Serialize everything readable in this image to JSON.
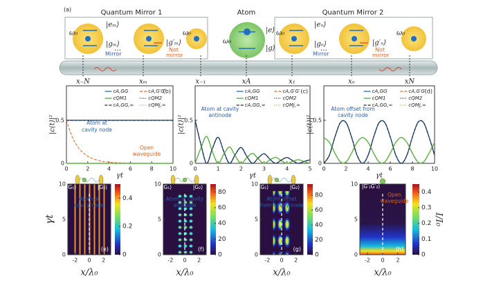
{
  "panel_a": {
    "label": "(a)",
    "mirror1_title": "Quantum Mirror 1",
    "mirror2_title": "Quantum Mirror 2",
    "atom_title": "Atom",
    "omega": "ω₀",
    "e_m": "|eₘ⟩",
    "g_m": "|gₘ⟩",
    "gp_m": "|g′ₘ⟩",
    "e_n": "|eₙ⟩",
    "g_n": "|gₙ⟩",
    "gp_n": "|g′ₙ⟩",
    "e": "|e⟩",
    "g": "|g⟩",
    "mirror": "Mirror",
    "not": "Not",
    "not_mirror": "mirror",
    "dots": "…",
    "positions": [
      "x₋N",
      "xₘ",
      "x₋₁",
      "xA",
      "x₁",
      "xₙ",
      "xN"
    ]
  },
  "chart_data": [
    {
      "type": "line",
      "panel_label": "(b)",
      "xlabel": "γt",
      "ylabel": "|c(t)|²",
      "xlim": [
        0,
        10
      ],
      "ylim": [
        0,
        0.9
      ],
      "xticks": [
        0,
        2,
        4,
        6,
        8,
        10
      ],
      "yticks": [
        0,
        0.5
      ],
      "annotations": [
        "Atom at",
        "cavity node",
        "Open",
        "waveguide"
      ],
      "x": [
        0,
        0.5,
        1,
        1.5,
        2,
        2.5,
        3,
        3.5,
        4,
        4.5,
        5,
        5.5,
        6,
        6.5,
        7,
        7.5,
        8,
        8.5,
        9,
        9.5,
        10
      ],
      "series": [
        {
          "name": "cA,GG",
          "color": "#1f6fc5",
          "dash": "solid",
          "values": [
            0.5,
            0.5,
            0.5,
            0.5,
            0.5,
            0.5,
            0.5,
            0.5,
            0.5,
            0.5,
            0.5,
            0.5,
            0.5,
            0.5,
            0.5,
            0.5,
            0.5,
            0.5,
            0.5,
            0.5,
            0.5
          ]
        },
        {
          "name": "cA,G′G′",
          "color": "#d9641e",
          "dash": "dashed",
          "values": [
            0.5,
            0.319,
            0.203,
            0.13,
            0.083,
            0.053,
            0.034,
            0.021,
            0.014,
            0.009,
            0.006,
            0.004,
            0.002,
            0.001,
            0,
            0,
            0,
            0,
            0,
            0,
            0
          ]
        },
        {
          "name": "cQM1",
          "color": "#4aa84a",
          "dash": "solid",
          "values": [
            0,
            0,
            0,
            0,
            0,
            0,
            0,
            0,
            0,
            0,
            0,
            0,
            0,
            0,
            0,
            0,
            0,
            0,
            0,
            0,
            0
          ]
        },
        {
          "name": "cQM2",
          "color": "#222222",
          "dash": "dotted",
          "values": [
            0.5,
            0.5,
            0.5,
            0.5,
            0.5,
            0.5,
            0.5,
            0.5,
            0.5,
            0.5,
            0.5,
            0.5,
            0.5,
            0.5,
            0.5,
            0.5,
            0.5,
            0.5,
            0.5,
            0.5,
            0.5
          ]
        },
        {
          "name": "cA,GG,∞",
          "color": "#222222",
          "dash": "dashed",
          "values": [
            0.5,
            0.5,
            0.5,
            0.5,
            0.5,
            0.5,
            0.5,
            0.5,
            0.5,
            0.5,
            0.5,
            0.5,
            0.5,
            0.5,
            0.5,
            0.5,
            0.5,
            0.5,
            0.5,
            0.5,
            0.5
          ]
        },
        {
          "name": "cQMj,∞",
          "color": "#8cc63f",
          "dash": "dotted",
          "values": [
            0,
            0,
            0,
            0,
            0,
            0,
            0,
            0,
            0,
            0,
            0,
            0,
            0,
            0,
            0,
            0,
            0,
            0,
            0,
            0,
            0
          ]
        }
      ]
    },
    {
      "type": "line",
      "panel_label": "(c)",
      "xlabel": "γt",
      "ylabel": "|c(t)|²",
      "xlim": [
        0,
        5
      ],
      "ylim": [
        0,
        0.9
      ],
      "xticks": [
        0,
        1,
        2,
        3,
        4,
        5
      ],
      "yticks": [
        0,
        0.5
      ],
      "annotations": [
        "Atom at cavity",
        "antinode"
      ],
      "x": [
        0,
        0.25,
        0.5,
        0.75,
        1,
        1.25,
        1.5,
        1.75,
        2,
        2.25,
        2.5,
        2.75,
        3,
        3.25,
        3.5,
        3.75,
        4,
        4.25,
        4.5,
        4.75,
        5
      ],
      "series": [
        {
          "name": "cA,GG",
          "color": "#1f6fc5",
          "dash": "solid",
          "values": [
            0.5,
            0.221,
            0,
            0.172,
            0.303,
            0.134,
            0,
            0.104,
            0.184,
            0.081,
            0,
            0.063,
            0.112,
            0.049,
            0,
            0.038,
            0.068,
            0.03,
            0,
            0.023,
            0.041
          ]
        },
        {
          "name": "cA,G′G′",
          "color": "#d9641e",
          "dash": "dashed",
          "values": [
            0,
            0.177,
            0.312,
            0.137,
            0,
            0.107,
            0.189,
            0.083,
            0,
            0.065,
            0.115,
            0.051,
            0,
            0.039,
            0.07,
            0.031,
            0,
            0.024,
            0.042,
            0.019,
            0
          ]
        },
        {
          "name": "cQM1",
          "color": "#4aa84a",
          "dash": "solid",
          "values": [
            0,
            0.177,
            0.312,
            0.137,
            0,
            0.107,
            0.189,
            0.083,
            0,
            0.065,
            0.115,
            0.051,
            0,
            0.039,
            0.07,
            0.031,
            0,
            0.024,
            0.042,
            0.019,
            0
          ]
        },
        {
          "name": "cQM2",
          "color": "#222222",
          "dash": "dotted",
          "values": [
            0.5,
            0.221,
            0,
            0.172,
            0.303,
            0.134,
            0,
            0.104,
            0.184,
            0.081,
            0,
            0.063,
            0.112,
            0.049,
            0,
            0.038,
            0.068,
            0.03,
            0,
            0.023,
            0.041
          ]
        },
        {
          "name": "cA,GG,∞",
          "color": "#222222",
          "dash": "dashed",
          "values": [
            0.5,
            0.221,
            0,
            0.172,
            0.303,
            0.134,
            0,
            0.104,
            0.184,
            0.081,
            0,
            0.063,
            0.112,
            0.049,
            0,
            0.038,
            0.068,
            0.03,
            0,
            0.023,
            0.041
          ]
        },
        {
          "name": "cQMj,∞",
          "color": "#8cc63f",
          "dash": "dotted",
          "values": [
            0,
            0.177,
            0.312,
            0.137,
            0,
            0.107,
            0.189,
            0.083,
            0,
            0.065,
            0.115,
            0.051,
            0,
            0.039,
            0.07,
            0.031,
            0,
            0.024,
            0.042,
            0.019,
            0
          ]
        }
      ]
    },
    {
      "type": "line",
      "panel_label": "(d)",
      "xlabel": "γt",
      "ylabel": "|c(t)|²",
      "xlim": [
        0,
        10
      ],
      "ylim": [
        0,
        0.9
      ],
      "xticks": [
        0,
        2,
        4,
        6,
        8,
        10
      ],
      "yticks": [
        0,
        0.5
      ],
      "annotations": [
        "Atom offset from",
        "cavity node"
      ],
      "x": [
        0,
        0.5,
        1,
        1.5,
        2,
        2.5,
        3,
        3.5,
        4,
        4.5,
        5,
        5.5,
        6,
        6.5,
        7,
        7.5,
        8,
        8.5,
        9,
        9.5,
        10
      ],
      "series": [
        {
          "name": "cA,GG",
          "color": "#1f6fc5",
          "dash": "solid",
          "values": [
            0,
            0.094,
            0.306,
            0.475,
            0.475,
            0.306,
            0.094,
            0,
            0.094,
            0.306,
            0.475,
            0.475,
            0.306,
            0.094,
            0,
            0.094,
            0.306,
            0.475,
            0.475,
            0.306,
            0.094
          ]
        },
        {
          "name": "cA,G′G′",
          "color": "#d9641e",
          "dash": "dashed",
          "values": [
            0.3,
            0.244,
            0.117,
            0.015,
            0.015,
            0.117,
            0.244,
            0.3,
            0.244,
            0.117,
            0.015,
            0.015,
            0.117,
            0.244,
            0.3,
            0.244,
            0.117,
            0.015,
            0.015,
            0.117,
            0.244
          ]
        },
        {
          "name": "cQM1",
          "color": "#4aa84a",
          "dash": "solid",
          "values": [
            0.3,
            0.244,
            0.117,
            0.015,
            0.015,
            0.117,
            0.244,
            0.3,
            0.244,
            0.117,
            0.015,
            0.015,
            0.117,
            0.244,
            0.3,
            0.244,
            0.117,
            0.015,
            0.015,
            0.117,
            0.244
          ]
        },
        {
          "name": "cQM2",
          "color": "#222222",
          "dash": "dotted",
          "values": [
            0,
            0.094,
            0.306,
            0.475,
            0.475,
            0.306,
            0.094,
            0,
            0.094,
            0.306,
            0.475,
            0.475,
            0.306,
            0.094,
            0,
            0.094,
            0.306,
            0.475,
            0.475,
            0.306,
            0.094
          ]
        },
        {
          "name": "cA,GG,∞",
          "color": "#222222",
          "dash": "dashed",
          "values": [
            0,
            0.094,
            0.306,
            0.475,
            0.475,
            0.306,
            0.094,
            0,
            0.094,
            0.306,
            0.475,
            0.475,
            0.306,
            0.094,
            0,
            0.094,
            0.306,
            0.475,
            0.475,
            0.306,
            0.094
          ]
        },
        {
          "name": "cQMj,∞",
          "color": "#8cc63f",
          "dash": "dotted",
          "values": [
            0.3,
            0.244,
            0.117,
            0.015,
            0.015,
            0.117,
            0.244,
            0.3,
            0.244,
            0.117,
            0.015,
            0.015,
            0.117,
            0.244,
            0.3,
            0.244,
            0.117,
            0.015,
            0.015,
            0.117,
            0.244
          ]
        }
      ]
    },
    {
      "type": "heatmap",
      "panel_label": "(e)",
      "xlabel": "x/λ₀",
      "ylabel": "γt",
      "xlim": [
        -3,
        3
      ],
      "ylim": [
        0,
        10
      ],
      "xticks": [
        -2,
        0,
        2
      ],
      "yticks": [
        0,
        5,
        10
      ],
      "clim": [
        0,
        0.5
      ],
      "cticks": [
        0,
        0.2,
        0.4
      ],
      "annotations": [
        "|G₁⟩",
        "|G₂⟩",
        "Atom at",
        "cavity node"
      ]
    },
    {
      "type": "heatmap",
      "panel_label": "(f)",
      "xlabel": "x/λ₀",
      "xlim": [
        -3,
        3
      ],
      "ylim": [
        0,
        10
      ],
      "xticks": [
        -2,
        0,
        2
      ],
      "yticks": [
        0,
        5,
        10
      ],
      "clim": [
        0,
        90
      ],
      "cticks": [
        0,
        20,
        40,
        60,
        80
      ],
      "annotations": [
        "|G₁⟩",
        "|G₂⟩",
        "Atom at cavity",
        "antinode"
      ]
    },
    {
      "type": "heatmap",
      "panel_label": "(g)",
      "xlabel": "x/λ₀",
      "xlim": [
        -3,
        3
      ],
      "ylim": [
        0,
        10
      ],
      "xticks": [
        -2,
        0,
        2
      ],
      "yticks": [
        0,
        5,
        10
      ],
      "clim": [
        0,
        95
      ],
      "cticks": [
        0,
        20,
        40,
        60,
        80
      ],
      "annotations": [
        "|G₁⟩",
        "|G₂⟩",
        "Atom offset",
        "from cavity node"
      ]
    },
    {
      "type": "heatmap",
      "panel_label": "(h)",
      "xlabel": "x/λ₀",
      "clabel": "I/I₀",
      "xlim": [
        -3,
        3
      ],
      "ylim": [
        0,
        10
      ],
      "xticks": [
        -2,
        0,
        2
      ],
      "yticks": [
        0,
        5,
        10
      ],
      "clim": [
        0,
        0.45
      ],
      "cticks": [
        0,
        0.1,
        0.2,
        0.3,
        0.4
      ],
      "annotations": [
        "|G′₁G′₂⟩",
        "Open",
        "waveguide"
      ]
    }
  ]
}
